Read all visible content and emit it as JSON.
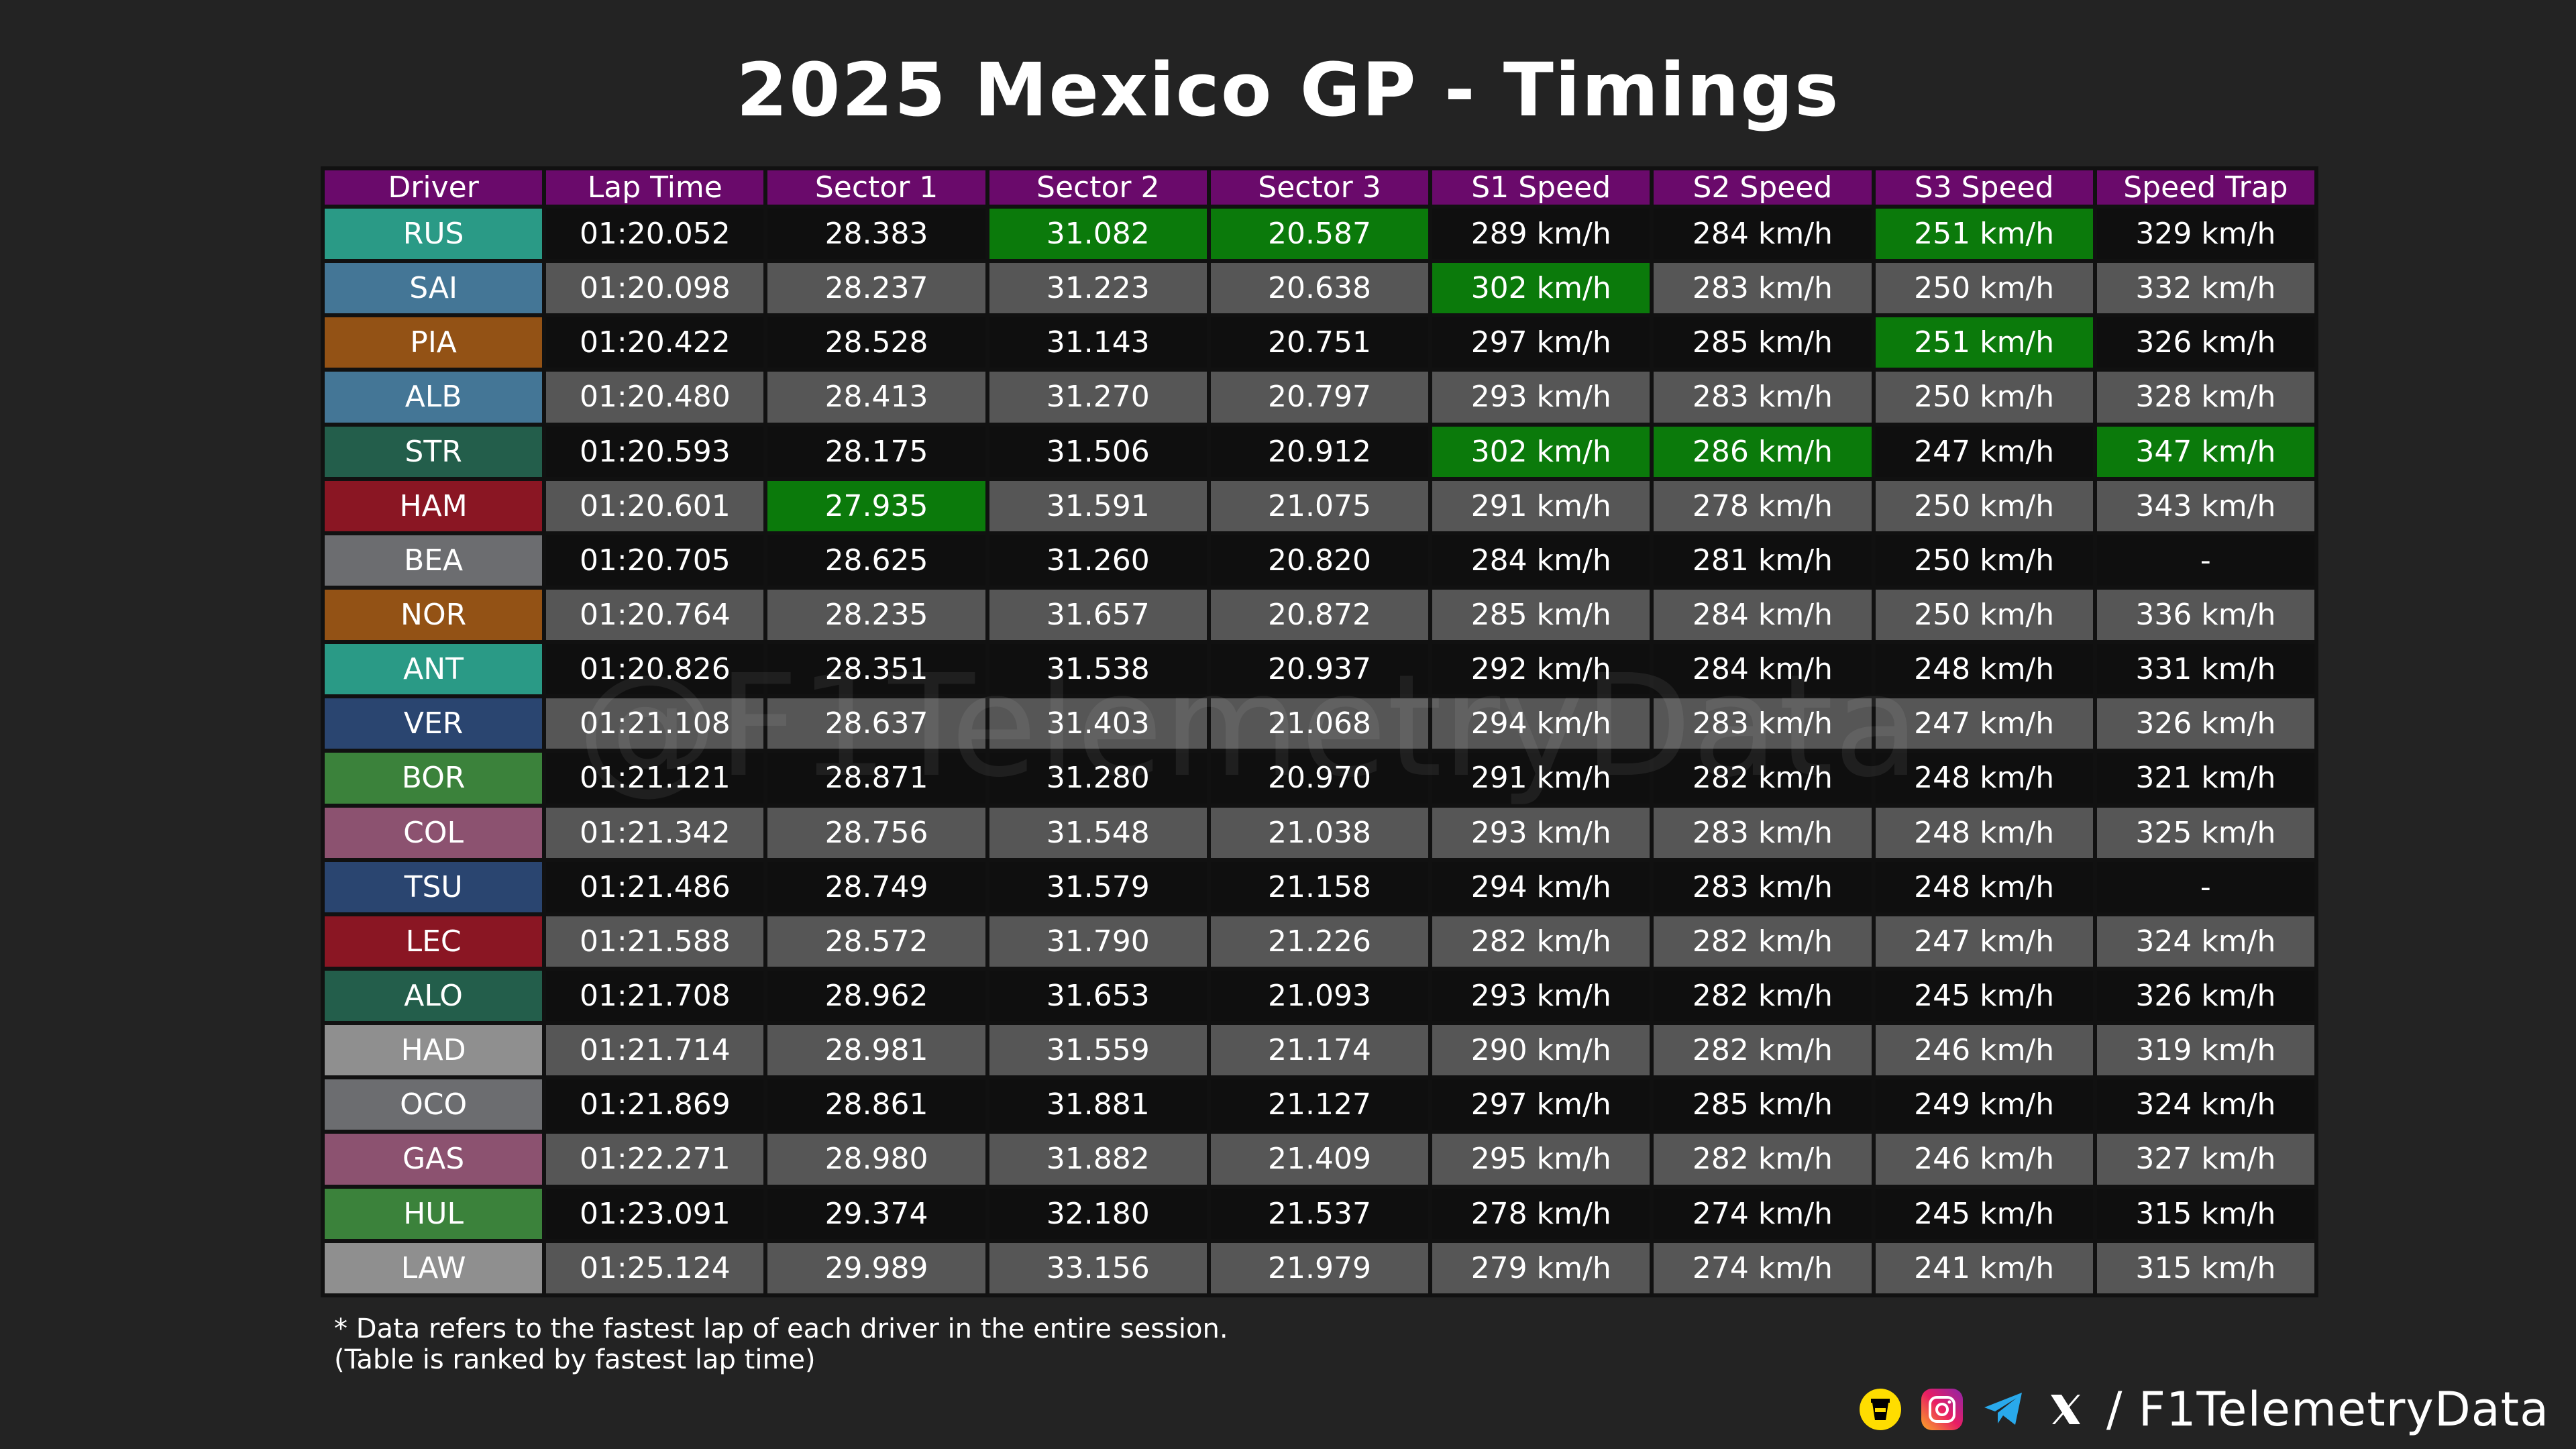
{
  "title": "2025 Mexico GP - Timings",
  "columns": [
    "Driver",
    "Lap Time",
    "Sector 1",
    "Sector 2",
    "Sector 3",
    "S1 Speed",
    "S2 Speed",
    "S3 Speed",
    "Speed Trap"
  ],
  "colors": {
    "header": "#6a0a6b",
    "best": "#0b7a0b",
    "row_dark": "#0f0f0f",
    "row_light": "#565656",
    "background": "#232323"
  },
  "chart_data": {
    "type": "table",
    "title": "2025 Mexico GP - Timings",
    "columns": [
      "Driver",
      "Lap Time",
      "Sector 1",
      "Sector 2",
      "Sector 3",
      "S1 Speed",
      "S2 Speed",
      "S3 Speed",
      "Speed Trap"
    ],
    "rows": [
      {
        "driver": "RUS",
        "team_color": "#2a9a86",
        "cells": [
          "01:20.052",
          "28.383",
          "31.082",
          "20.587",
          "289 km/h",
          "284 km/h",
          "251 km/h",
          "329 km/h"
        ],
        "best": [
          2,
          3,
          6
        ]
      },
      {
        "driver": "SAI",
        "team_color": "#447696",
        "cells": [
          "01:20.098",
          "28.237",
          "31.223",
          "20.638",
          "302 km/h",
          "283 km/h",
          "250 km/h",
          "332 km/h"
        ],
        "best": [
          4
        ]
      },
      {
        "driver": "PIA",
        "team_color": "#935215",
        "cells": [
          "01:20.422",
          "28.528",
          "31.143",
          "20.751",
          "297 km/h",
          "285 km/h",
          "251 km/h",
          "326 km/h"
        ],
        "best": [
          6
        ]
      },
      {
        "driver": "ALB",
        "team_color": "#447696",
        "cells": [
          "01:20.480",
          "28.413",
          "31.270",
          "20.797",
          "293 km/h",
          "283 km/h",
          "250 km/h",
          "328 km/h"
        ],
        "best": []
      },
      {
        "driver": "STR",
        "team_color": "#235e4b",
        "cells": [
          "01:20.593",
          "28.175",
          "31.506",
          "20.912",
          "302 km/h",
          "286 km/h",
          "247 km/h",
          "347 km/h"
        ],
        "best": [
          4,
          5,
          7
        ]
      },
      {
        "driver": "HAM",
        "team_color": "#8a1623",
        "cells": [
          "01:20.601",
          "27.935",
          "31.591",
          "21.075",
          "291 km/h",
          "278 km/h",
          "250 km/h",
          "343 km/h"
        ],
        "best": [
          1
        ]
      },
      {
        "driver": "BEA",
        "team_color": "#6c6d70",
        "cells": [
          "01:20.705",
          "28.625",
          "31.260",
          "20.820",
          "284 km/h",
          "281 km/h",
          "250 km/h",
          "-"
        ],
        "best": []
      },
      {
        "driver": "NOR",
        "team_color": "#935215",
        "cells": [
          "01:20.764",
          "28.235",
          "31.657",
          "20.872",
          "285 km/h",
          "284 km/h",
          "250 km/h",
          "336 km/h"
        ],
        "best": []
      },
      {
        "driver": "ANT",
        "team_color": "#2a9a86",
        "cells": [
          "01:20.826",
          "28.351",
          "31.538",
          "20.937",
          "292 km/h",
          "284 km/h",
          "248 km/h",
          "331 km/h"
        ],
        "best": []
      },
      {
        "driver": "VER",
        "team_color": "#2a4570",
        "cells": [
          "01:21.108",
          "28.637",
          "31.403",
          "21.068",
          "294 km/h",
          "283 km/h",
          "247 km/h",
          "326 km/h"
        ],
        "best": []
      },
      {
        "driver": "BOR",
        "team_color": "#3b823b",
        "cells": [
          "01:21.121",
          "28.871",
          "31.280",
          "20.970",
          "291 km/h",
          "282 km/h",
          "248 km/h",
          "321 km/h"
        ],
        "best": []
      },
      {
        "driver": "COL",
        "team_color": "#8c5270",
        "cells": [
          "01:21.342",
          "28.756",
          "31.548",
          "21.038",
          "293 km/h",
          "283 km/h",
          "248 km/h",
          "325 km/h"
        ],
        "best": []
      },
      {
        "driver": "TSU",
        "team_color": "#2a4570",
        "cells": [
          "01:21.486",
          "28.749",
          "31.579",
          "21.158",
          "294 km/h",
          "283 km/h",
          "248 km/h",
          "-"
        ],
        "best": []
      },
      {
        "driver": "LEC",
        "team_color": "#8a1623",
        "cells": [
          "01:21.588",
          "28.572",
          "31.790",
          "21.226",
          "282 km/h",
          "282 km/h",
          "247 km/h",
          "324 km/h"
        ],
        "best": []
      },
      {
        "driver": "ALO",
        "team_color": "#235e4b",
        "cells": [
          "01:21.708",
          "28.962",
          "31.653",
          "21.093",
          "293 km/h",
          "282 km/h",
          "245 km/h",
          "326 km/h"
        ],
        "best": []
      },
      {
        "driver": "HAD",
        "team_color": "#8f8f8f",
        "cells": [
          "01:21.714",
          "28.981",
          "31.559",
          "21.174",
          "290 km/h",
          "282 km/h",
          "246 km/h",
          "319 km/h"
        ],
        "best": []
      },
      {
        "driver": "OCO",
        "team_color": "#6c6d70",
        "cells": [
          "01:21.869",
          "28.861",
          "31.881",
          "21.127",
          "297 km/h",
          "285 km/h",
          "249 km/h",
          "324 km/h"
        ],
        "best": []
      },
      {
        "driver": "GAS",
        "team_color": "#8c5270",
        "cells": [
          "01:22.271",
          "28.980",
          "31.882",
          "21.409",
          "295 km/h",
          "282 km/h",
          "246 km/h",
          "327 km/h"
        ],
        "best": []
      },
      {
        "driver": "HUL",
        "team_color": "#3b823b",
        "cells": [
          "01:23.091",
          "29.374",
          "32.180",
          "21.537",
          "278 km/h",
          "274 km/h",
          "245 km/h",
          "315 km/h"
        ],
        "best": []
      },
      {
        "driver": "LAW",
        "team_color": "#8f8f8f",
        "cells": [
          "01:25.124",
          "29.989",
          "33.156",
          "21.979",
          "279 km/h",
          "274 km/h",
          "241 km/h",
          "315 km/h"
        ],
        "best": []
      }
    ]
  },
  "watermark": "@F1TelemetryData",
  "footnote": {
    "line1": "* Data refers to the fastest lap of each driver in the entire session.",
    "line2": "(Table is ranked by fastest lap time)"
  },
  "social": {
    "icons": [
      "buymeacoffee-icon",
      "instagram-icon",
      "telegram-icon",
      "x-icon"
    ],
    "handle": "/ F1TelemetryData"
  }
}
